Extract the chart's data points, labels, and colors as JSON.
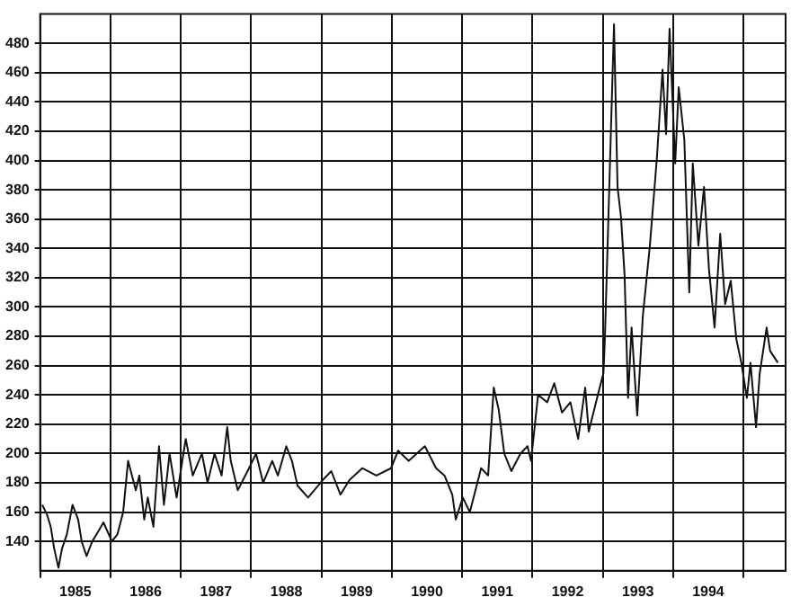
{
  "chart_data": {
    "type": "line",
    "x": [
      1985.03,
      1985.1,
      1985.15,
      1985.2,
      1985.26,
      1985.31,
      1985.38,
      1985.46,
      1985.54,
      1985.59,
      1985.66,
      1985.74,
      1985.84,
      1985.9,
      1986.02,
      1986.1,
      1986.18,
      1986.25,
      1986.36,
      1986.41,
      1986.48,
      1986.53,
      1986.61,
      1986.69,
      1986.76,
      1986.84,
      1986.94,
      1987.07,
      1987.17,
      1987.3,
      1987.38,
      1987.48,
      1987.58,
      1987.66,
      1987.71,
      1987.81,
      1987.97,
      1988.07,
      1988.17,
      1988.3,
      1988.38,
      1988.5,
      1988.58,
      1988.66,
      1988.81,
      1989.02,
      1989.14,
      1989.27,
      1989.4,
      1989.58,
      1989.78,
      1989.99,
      1990.09,
      1990.24,
      1990.47,
      1990.63,
      1990.75,
      1990.86,
      1990.91,
      1991.01,
      1991.11,
      1991.19,
      1991.27,
      1991.37,
      1991.45,
      1991.52,
      1991.6,
      1991.7,
      1991.83,
      1991.93,
      1991.98,
      1992.08,
      1992.21,
      1992.31,
      1992.42,
      1992.54,
      1992.65,
      1992.75,
      1992.8,
      1992.93,
      1993.01,
      1993.03,
      1993.16,
      1993.21,
      1993.26,
      1993.31,
      1993.36,
      1993.41,
      1993.49,
      1993.57,
      1993.67,
      1993.77,
      1993.85,
      1993.9,
      1993.95,
      1994.03,
      1994.08,
      1994.16,
      1994.23,
      1994.28,
      1994.36,
      1994.44,
      1994.51,
      1994.59,
      1994.67,
      1994.74,
      1994.82,
      1994.9,
      1994.97,
      1995.05,
      1995.1,
      1995.18,
      1995.23,
      1995.33,
      1995.38,
      1995.49
    ],
    "series": [
      {
        "color": "#111111",
        "values": [
          165,
          158,
          150,
          135,
          122,
          135,
          145,
          165,
          155,
          140,
          130,
          140,
          148,
          153,
          140,
          145,
          160,
          195,
          175,
          185,
          155,
          170,
          150,
          205,
          165,
          200,
          170,
          210,
          185,
          200,
          180,
          200,
          185,
          218,
          195,
          175,
          190,
          200,
          180,
          195,
          185,
          205,
          195,
          178,
          170,
          182,
          188,
          172,
          182,
          190,
          185,
          190,
          202,
          195,
          205,
          190,
          185,
          172,
          155,
          170,
          160,
          175,
          190,
          185,
          245,
          230,
          200,
          188,
          200,
          205,
          195,
          240,
          235,
          248,
          228,
          235,
          210,
          245,
          215,
          240,
          255,
          278,
          493,
          382,
          361,
          322,
          238,
          286,
          226,
          294,
          342,
          402,
          462,
          418,
          490,
          398,
          450,
          414,
          310,
          398,
          342,
          382,
          326,
          286,
          350,
          302,
          318,
          278,
          262,
          238,
          262,
          218,
          254,
          286,
          270,
          262
        ]
      }
    ],
    "xlim": [
      1985,
      1995.6
    ],
    "xticks": [
      {
        "value": 1985,
        "label": null
      },
      {
        "value": 1985.5,
        "label": "1985"
      },
      {
        "value": 1986,
        "label": null
      },
      {
        "value": 1986.5,
        "label": "1986"
      },
      {
        "value": 1987,
        "label": null
      },
      {
        "value": 1987.5,
        "label": "1987"
      },
      {
        "value": 1988,
        "label": null
      },
      {
        "value": 1988.5,
        "label": "1988"
      },
      {
        "value": 1989,
        "label": null
      },
      {
        "value": 1989.5,
        "label": "1989"
      },
      {
        "value": 1990,
        "label": null
      },
      {
        "value": 1990.5,
        "label": "1990"
      },
      {
        "value": 1991,
        "label": null
      },
      {
        "value": 1991.5,
        "label": "1991"
      },
      {
        "value": 1992,
        "label": null
      },
      {
        "value": 1992.5,
        "label": "1992"
      },
      {
        "value": 1993,
        "label": null
      },
      {
        "value": 1993.5,
        "label": "1993"
      },
      {
        "value": 1994,
        "label": null
      },
      {
        "value": 1994.5,
        "label": "1994"
      },
      {
        "value": 1995,
        "label": null
      }
    ],
    "ylim": [
      120,
      500
    ],
    "yticks": [
      140,
      160,
      180,
      200,
      220,
      240,
      260,
      280,
      300,
      320,
      340,
      360,
      380,
      400,
      420,
      440,
      460,
      480
    ],
    "grid": true,
    "legend": false
  }
}
